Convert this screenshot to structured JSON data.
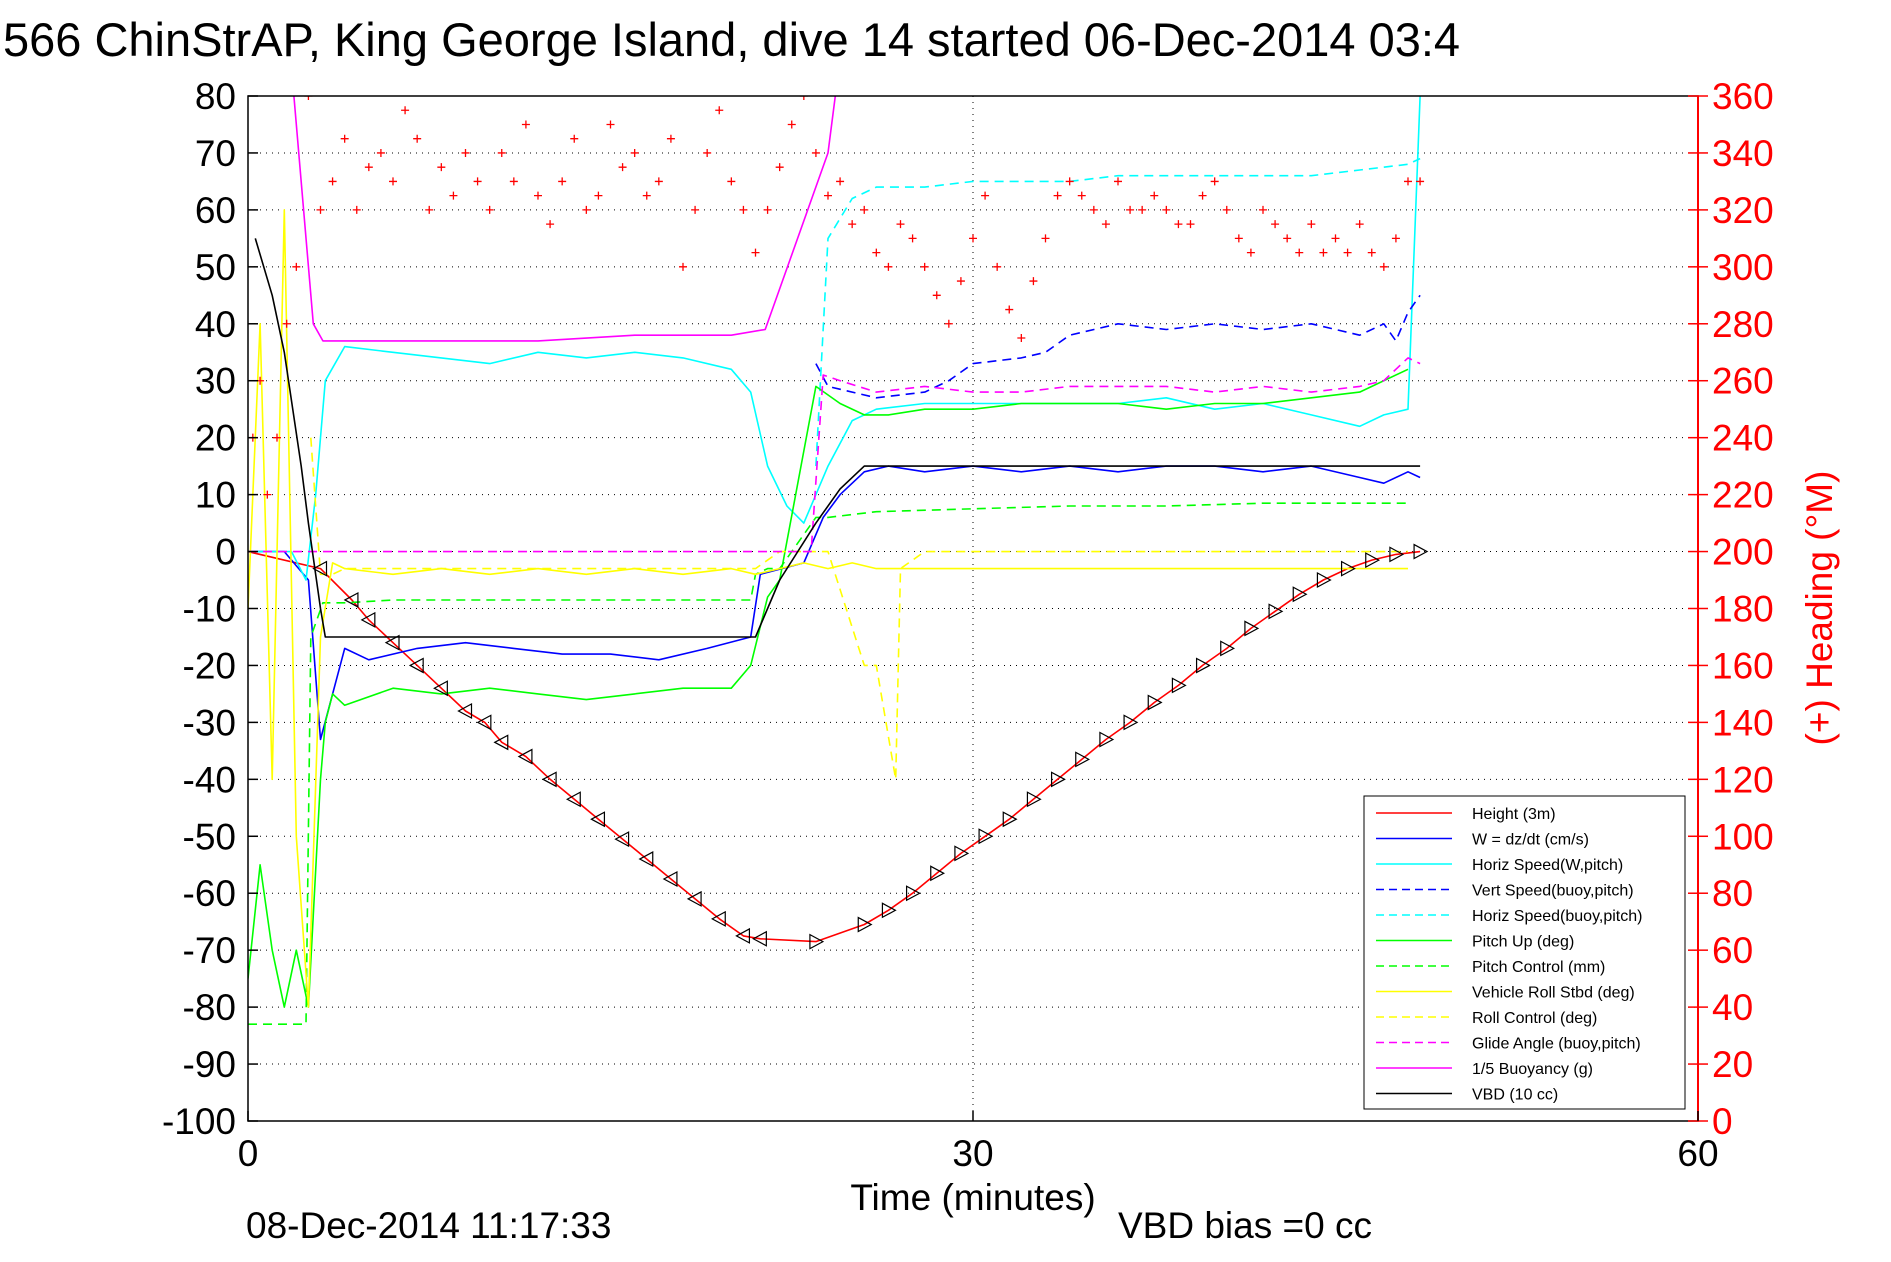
{
  "chart_data": {
    "type": "line",
    "title": "566 ChinStrAP, King George Island, dive 14 started 06-Dec-2014 03:4",
    "xlabel": "Time (minutes)",
    "ylabel_right": "(+) Heading (°M)",
    "footer_left": "08-Dec-2014 11:17:33",
    "footer_right": "VBD bias =0 cc",
    "xlim": [
      0,
      60
    ],
    "ylim": [
      -100,
      80
    ],
    "ylim_right": [
      0,
      360
    ],
    "x_ticks": [
      "0",
      "30",
      "60"
    ],
    "y_ticks": [
      "80",
      "70",
      "60",
      "50",
      "40",
      "30",
      "20",
      "10",
      "0",
      "-10",
      "-20",
      "-30",
      "-40",
      "-50",
      "-60",
      "-70",
      "-80",
      "-90",
      "-100"
    ],
    "y_ticks_right": [
      "360",
      "340",
      "320",
      "300",
      "280",
      "260",
      "240",
      "220",
      "200",
      "180",
      "160",
      "140",
      "120",
      "100",
      "80",
      "60",
      "40",
      "20",
      "0"
    ],
    "grid": true,
    "legend_position": "bottom-right",
    "colors": {
      "red": "#ff0000",
      "blue": "#0000ff",
      "cyan": "#00ffff",
      "green": "#00ff00",
      "yellow": "#ffff00",
      "magenta": "#ff00ff",
      "black": "#000000",
      "grid": "#000000"
    },
    "series": [
      {
        "name": "Height (3m)",
        "color": "#ff0000",
        "dash": false,
        "x": [
          0,
          3,
          4.3,
          5,
          6,
          7,
          8,
          9,
          9.8,
          10.5,
          11.5,
          12.5,
          13.5,
          14.5,
          15.5,
          16.5,
          17.5,
          18.5,
          19.5,
          20.5,
          21.2,
          23.5,
          25.5,
          26.5,
          27.5,
          28.5,
          29.5,
          30.5,
          31.5,
          32.5,
          33.5,
          34.5,
          35.5,
          36.5,
          37.5,
          38.5,
          39.5,
          40.5,
          41.5,
          42.5,
          43.5,
          44.5,
          45.5,
          46.5,
          47.5,
          48.5
        ],
        "y": [
          0,
          -3,
          -8.5,
          -12,
          -16,
          -20,
          -24,
          -28,
          -30,
          -33.5,
          -36,
          -40,
          -43.5,
          -47,
          -50.5,
          -54,
          -57.5,
          -61,
          -64.5,
          -67.5,
          -68,
          -68.5,
          -65.5,
          -63,
          -60,
          -56.5,
          -53,
          -50,
          -47,
          -43.5,
          -40,
          -36.5,
          -33,
          -30,
          -26.5,
          -23.5,
          -20,
          -17,
          -13.5,
          -10.5,
          -7.5,
          -5,
          -3,
          -1.5,
          -0.5,
          0
        ]
      },
      {
        "name": "W = dz/dt (cm/s)",
        "color": "#0000ff",
        "dash": false,
        "x": [
          0,
          1.5,
          2.5,
          3,
          4,
          5,
          7,
          9,
          11,
          13,
          15,
          17,
          19,
          20.8,
          21.2,
          23,
          23.8,
          24.5,
          25.5,
          26.5,
          28,
          30,
          32,
          34,
          36,
          38,
          40,
          42,
          44,
          46,
          47,
          48,
          48.5
        ],
        "y": [
          0,
          0,
          -5,
          -33,
          -17,
          -19,
          -17,
          -16,
          -17,
          -18,
          -18,
          -19,
          -17,
          -15,
          -4,
          -2,
          6,
          10,
          14,
          15,
          14,
          15,
          14,
          15,
          14,
          15,
          15,
          14,
          15,
          13,
          12,
          14,
          13
        ]
      },
      {
        "name": "Horiz Speed(W,pitch)",
        "color": "#00ffff",
        "dash": false,
        "x": [
          0,
          1.8,
          2.4,
          2.8,
          3.2,
          4,
          6,
          8,
          10,
          12,
          14,
          16,
          18,
          20,
          20.8,
          21.5,
          22.3,
          23,
          24,
          25,
          26,
          28,
          30,
          32,
          34,
          36,
          38,
          40,
          42,
          44,
          46,
          47,
          48,
          48.5
        ],
        "y": [
          0,
          0,
          -5,
          10,
          30,
          36,
          35,
          34,
          33,
          35,
          34,
          35,
          34,
          32,
          28,
          15,
          8,
          5,
          15,
          23,
          25,
          26,
          26,
          26,
          26,
          26,
          27,
          25,
          26,
          24,
          22,
          24,
          25,
          80
        ]
      },
      {
        "name": "Vert Speed(buoy,pitch)",
        "color": "#0000ff",
        "dash": true,
        "x": [
          23.5,
          24,
          26,
          28,
          29,
          30,
          32,
          33,
          34,
          36,
          38,
          40,
          42,
          44,
          46,
          47,
          47.5,
          48,
          48.5
        ],
        "y": [
          33,
          29,
          27,
          28,
          30,
          33,
          34,
          35,
          38,
          40,
          39,
          40,
          39,
          40,
          38,
          40,
          37,
          42,
          45
        ]
      },
      {
        "name": "Horiz Speed(buoy,pitch)",
        "color": "#00ffff",
        "dash": true,
        "x": [
          23.5,
          24,
          25,
          26,
          27,
          28,
          30,
          32,
          34,
          36,
          38,
          40,
          42,
          44,
          46,
          48,
          48.5
        ],
        "y": [
          15,
          55,
          62,
          64,
          64,
          64,
          65,
          65,
          65,
          66,
          66,
          66,
          66,
          66,
          67,
          68,
          69
        ]
      },
      {
        "name": "Pitch Up (deg)",
        "color": "#00ff00",
        "dash": false,
        "x": [
          0,
          0.5,
          1,
          1.5,
          2,
          2.5,
          3,
          3.2,
          3.5,
          4,
          6,
          8,
          10,
          12,
          14,
          16,
          18,
          20,
          20.8,
          21.5,
          22,
          23.5,
          24.5,
          25.5,
          26.5,
          28,
          30,
          32,
          34,
          36,
          38,
          40,
          42,
          44,
          46,
          48
        ],
        "y": [
          -75,
          -55,
          -70,
          -80,
          -70,
          -80,
          -40,
          -30,
          -25,
          -27,
          -24,
          -25,
          -24,
          -25,
          -26,
          -25,
          -24,
          -24,
          -20,
          -8,
          -5,
          29,
          26,
          24,
          24,
          25,
          25,
          26,
          26,
          26,
          25,
          26,
          26,
          27,
          28,
          32
        ]
      },
      {
        "name": "Pitch Control (mm)",
        "color": "#00ff00",
        "dash": true,
        "x": [
          0,
          2.4,
          2.6,
          3.1,
          4,
          6,
          10,
          14,
          18,
          20.8,
          21,
          21.5,
          22,
          23.5,
          24,
          26,
          30,
          34,
          38,
          42,
          46,
          48
        ],
        "y": [
          -83,
          -83,
          -15,
          -9,
          -9,
          -8.5,
          -8.5,
          -8.5,
          -8.5,
          -8.5,
          -4,
          -3,
          -3,
          6,
          6,
          7,
          7.5,
          8,
          8,
          8.5,
          8.5,
          8.5
        ]
      },
      {
        "name": "Vehicle Roll Stbd (deg)",
        "color": "#ffff00",
        "dash": false,
        "x": [
          0,
          0.5,
          1,
          1.5,
          2,
          2.5,
          3,
          3.5,
          4,
          6,
          8,
          10,
          12,
          14,
          16,
          18,
          20,
          21,
          22,
          23,
          24,
          25,
          26,
          28,
          30,
          32,
          34,
          36,
          38,
          40,
          42,
          44,
          46,
          48
        ],
        "y": [
          -10,
          40,
          -40,
          60,
          -50,
          -80,
          -15,
          -2,
          -3,
          -4,
          -3,
          -4,
          -3,
          -4,
          -3,
          -4,
          -3,
          -4,
          -3,
          -2,
          -3,
          -2,
          -3,
          -3,
          -3,
          -3,
          -3,
          -3,
          -3,
          -3,
          -3,
          -3,
          -3,
          -3
        ]
      },
      {
        "name": "Roll Control (deg)",
        "color": "#ffff00",
        "dash": true,
        "x": [
          2.6,
          3,
          3.5,
          4,
          6,
          8,
          10,
          12,
          14,
          16,
          18,
          20,
          21,
          22,
          24,
          25.5,
          26,
          26.8,
          27,
          28,
          30,
          32,
          34,
          36,
          38,
          40,
          42,
          44,
          46,
          48
        ],
        "y": [
          20,
          -4,
          -4,
          -3,
          -3,
          -3,
          -3,
          -3,
          -3,
          -3,
          -3,
          -3,
          -3,
          0,
          0,
          -20,
          -20,
          -40,
          -3,
          0,
          0,
          0,
          0,
          0,
          0,
          0,
          0,
          0,
          0,
          0
        ]
      },
      {
        "name": "Glide Angle (buoy,pitch)",
        "color": "#ff00ff",
        "dash": true,
        "x": [
          0,
          4,
          8,
          12,
          16,
          20,
          21,
          22,
          23.3,
          23.8,
          24.5,
          26,
          28,
          30,
          32,
          34,
          36,
          38,
          40,
          42,
          44,
          46,
          47,
          48,
          48.5
        ],
        "y": [
          0,
          0,
          0,
          0,
          0,
          0,
          0,
          0,
          0,
          31,
          30,
          28,
          29,
          28,
          28,
          29,
          29,
          29,
          28,
          29,
          28,
          29,
          30,
          34,
          33
        ]
      },
      {
        "name": "1/5 Buoyancy (g)",
        "color": "#ff00ff",
        "dash": false,
        "x": [
          1.9,
          2.3,
          2.7,
          3.1,
          4,
          8,
          12,
          16,
          20,
          21.4,
          24,
          24.3
        ],
        "y": [
          80,
          60,
          40,
          37,
          37,
          37,
          37,
          38,
          38,
          39,
          70,
          80
        ]
      },
      {
        "name": "VBD (10 cc)",
        "color": "#000000",
        "dash": false,
        "x": [
          0.3,
          1,
          1.5,
          2.2,
          2.5,
          3,
          3.2,
          4,
          8,
          12,
          16,
          20,
          21,
          22,
          23.5,
          24.5,
          25.5,
          26,
          28,
          30,
          34,
          38,
          42,
          46,
          48.5
        ],
        "y": [
          55,
          45,
          35,
          15,
          5,
          -10,
          -15,
          -15,
          -15,
          -15,
          -15,
          -15,
          -15,
          -5,
          5,
          11,
          15,
          15,
          15,
          15,
          15,
          15,
          15,
          15,
          15
        ]
      }
    ],
    "heading": {
      "name": "(+) Heading",
      "color": "#ff0000",
      "x": [
        0.2,
        0.5,
        0.8,
        1.2,
        1.6,
        2,
        2.5,
        3,
        3.5,
        4,
        4.5,
        5,
        5.5,
        6,
        6.5,
        7,
        7.5,
        8,
        8.5,
        9,
        9.5,
        10,
        10.5,
        11,
        11.5,
        12,
        12.5,
        13,
        13.5,
        14,
        14.5,
        15,
        15.5,
        16,
        16.5,
        17,
        17.5,
        18,
        18.5,
        19,
        19.5,
        20,
        20.5,
        21,
        21.5,
        22,
        22.5,
        23,
        23.5,
        24,
        24.5,
        25,
        25.5,
        26,
        26.5,
        27,
        27.5,
        28,
        28.5,
        29,
        29.5,
        30,
        30.5,
        31,
        31.5,
        32,
        32.5,
        33,
        33.5,
        34,
        34.5,
        35,
        35.5,
        36,
        36.5,
        37,
        37.5,
        38,
        38.5,
        39,
        39.5,
        40,
        40.5,
        41,
        41.5,
        42,
        42.5,
        43,
        43.5,
        44,
        44.5,
        45,
        45.5,
        46,
        46.5,
        47,
        47.5,
        48,
        48.5
      ],
      "y": [
        240,
        260,
        220,
        240,
        280,
        300,
        360,
        320,
        330,
        345,
        320,
        335,
        340,
        330,
        355,
        345,
        320,
        335,
        325,
        340,
        330,
        320,
        340,
        330,
        350,
        325,
        315,
        330,
        345,
        320,
        325,
        350,
        335,
        340,
        325,
        330,
        345,
        300,
        320,
        340,
        355,
        330,
        320,
        305,
        320,
        335,
        350,
        360,
        340,
        325,
        330,
        315,
        320,
        305,
        300,
        315,
        310,
        300,
        290,
        280,
        295,
        310,
        325,
        300,
        285,
        275,
        295,
        310,
        325,
        330,
        325,
        320,
        315,
        330,
        320,
        320,
        325,
        320,
        315,
        315,
        325,
        330,
        320,
        310,
        305,
        320,
        315,
        310,
        305,
        315,
        305,
        310,
        305,
        315,
        305,
        300,
        310,
        330,
        330
      ]
    }
  }
}
